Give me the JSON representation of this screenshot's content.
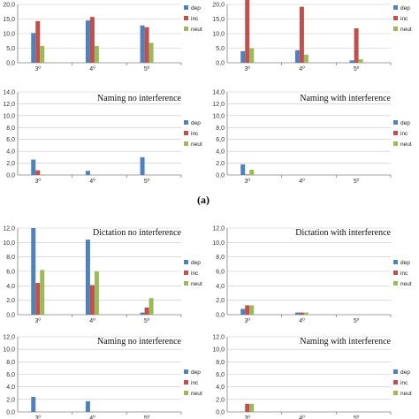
{
  "caption": "(a)",
  "colors": {
    "dep": "#4f81bd",
    "inc": "#c0504d",
    "neut": "#9bbb59"
  },
  "legend": [
    "dep",
    "inc",
    "neut"
  ],
  "chart_data": [
    {
      "type": "bar",
      "title": "",
      "categories": [
        "3º",
        "4º",
        "5º"
      ],
      "yticks": [
        "0,0",
        "5,0",
        "10,0",
        "15,0",
        "20,0"
      ],
      "ylim": [
        0,
        20
      ],
      "grid": true,
      "legend_position": "right",
      "series": [
        {
          "name": "dep",
          "values": [
            10.2,
            14.5,
            12.8
          ]
        },
        {
          "name": "inc",
          "values": [
            14.3,
            15.7,
            12.2
          ]
        },
        {
          "name": "neut",
          "values": [
            5.8,
            5.8,
            6.8
          ]
        }
      ]
    },
    {
      "type": "bar",
      "title": "",
      "categories": [
        "3º",
        "4º",
        "5º"
      ],
      "yticks": [
        "0,0",
        "5,0",
        "10,0",
        "15,0",
        "20,0"
      ],
      "ylim": [
        0,
        20
      ],
      "grid": true,
      "legend_position": "right",
      "series": [
        {
          "name": "dep",
          "values": [
            4.0,
            4.3,
            0.8
          ]
        },
        {
          "name": "inc",
          "values": [
            22.0,
            19.2,
            11.8
          ]
        },
        {
          "name": "neut",
          "values": [
            5.0,
            2.8,
            1.2
          ]
        }
      ]
    },
    {
      "type": "bar",
      "title": "Naming no interference",
      "categories": [
        "3º",
        "4º",
        "5º"
      ],
      "yticks": [
        "0,0",
        "2,0",
        "4,0",
        "6,0",
        "8,0",
        "10,0",
        "12,0",
        "14,0"
      ],
      "ylim": [
        0,
        14
      ],
      "grid": true,
      "legend_position": "right",
      "series": [
        {
          "name": "dep",
          "values": [
            2.6,
            0.7,
            3.0
          ]
        },
        {
          "name": "inc",
          "values": [
            0.8,
            0.0,
            0.0
          ]
        },
        {
          "name": "neut",
          "values": [
            0.1,
            0.0,
            0.0
          ]
        }
      ]
    },
    {
      "type": "bar",
      "title": "Naming with interference",
      "categories": [
        "3º",
        "4º",
        "5º"
      ],
      "yticks": [
        "0,0",
        "2,0",
        "4,0",
        "6,0",
        "8,0",
        "10,0",
        "12,0",
        "14,0"
      ],
      "ylim": [
        0,
        14
      ],
      "grid": true,
      "legend_position": "right",
      "series": [
        {
          "name": "dep",
          "values": [
            1.8,
            0.0,
            0.0
          ]
        },
        {
          "name": "inc",
          "values": [
            0.1,
            0.0,
            0.0
          ]
        },
        {
          "name": "neut",
          "values": [
            0.9,
            0.0,
            0.0
          ]
        }
      ]
    },
    {
      "type": "bar",
      "title": "Dictation no interference",
      "categories": [
        "3º",
        "4º",
        "5º"
      ],
      "yticks": [
        "0,0",
        "2,0",
        "4,0",
        "6,0",
        "8,0",
        "10,0",
        "12,0"
      ],
      "ylim": [
        0,
        12
      ],
      "grid": true,
      "legend_position": "right",
      "series": [
        {
          "name": "dep",
          "values": [
            12.0,
            10.4,
            0.3
          ]
        },
        {
          "name": "inc",
          "values": [
            4.4,
            4.1,
            1.0
          ]
        },
        {
          "name": "neut",
          "values": [
            6.2,
            6.0,
            2.3
          ]
        }
      ]
    },
    {
      "type": "bar",
      "title": "Dictation with interference",
      "categories": [
        "3º",
        "4º",
        "5º"
      ],
      "yticks": [
        "0,0",
        "2,0",
        "4,0",
        "6,0",
        "8,0",
        "10,0",
        "12,0"
      ],
      "ylim": [
        0,
        12
      ],
      "grid": true,
      "legend_position": "right",
      "series": [
        {
          "name": "dep",
          "values": [
            0.8,
            0.3,
            0.0
          ]
        },
        {
          "name": "inc",
          "values": [
            1.3,
            0.3,
            0.0
          ]
        },
        {
          "name": "neut",
          "values": [
            1.3,
            0.3,
            0.0
          ]
        }
      ]
    },
    {
      "type": "bar",
      "title": "Naming no interference",
      "categories": [
        "3º",
        "4º",
        "5º"
      ],
      "yticks": [
        "0,0",
        "2,0",
        "4,0",
        "6,0",
        "8,0",
        "10,0",
        "12,0"
      ],
      "ylim": [
        0,
        12
      ],
      "grid": true,
      "legend_position": "right",
      "series": [
        {
          "name": "dep",
          "values": [
            2.4,
            1.7,
            0.0
          ]
        },
        {
          "name": "inc",
          "values": [
            0.0,
            0.0,
            0.0
          ]
        },
        {
          "name": "neut",
          "values": [
            0.0,
            0.0,
            0.0
          ]
        }
      ]
    },
    {
      "type": "bar",
      "title": "Naming with interference",
      "categories": [
        "3º",
        "4º",
        "5º"
      ],
      "yticks": [
        "0,0",
        "2,0",
        "4,0",
        "6,0",
        "8,0",
        "10,0",
        "12,0"
      ],
      "ylim": [
        0,
        12
      ],
      "grid": true,
      "legend_position": "right",
      "series": [
        {
          "name": "dep",
          "values": [
            0.0,
            0.0,
            0.0
          ]
        },
        {
          "name": "inc",
          "values": [
            1.3,
            0.0,
            0.0
          ]
        },
        {
          "name": "neut",
          "values": [
            1.3,
            0.0,
            0.0
          ]
        }
      ]
    }
  ]
}
